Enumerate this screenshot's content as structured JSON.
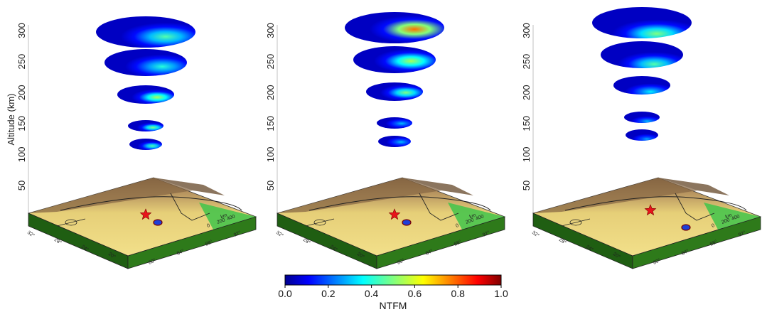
{
  "y_axis": {
    "label": "Altitude (km)",
    "ticks": [
      "50",
      "100",
      "150",
      "200",
      "250",
      "300"
    ]
  },
  "map_labels": {
    "lat_ticks": [
      "32°",
      "28°",
      "24°",
      "20°"
    ],
    "lon_ticks": [
      "80°",
      "84°",
      "88°",
      "92°"
    ],
    "scale_label": "km",
    "scale_ticks": [
      "0",
      "200",
      "400"
    ]
  },
  "colorbar": {
    "label": "NTFM",
    "ticks": [
      "0.0",
      "0.2",
      "0.4",
      "0.6",
      "0.8",
      "1.0"
    ],
    "colormap": "jet",
    "min": 0.0,
    "max": 1.0
  },
  "panels": [
    {
      "name": "left",
      "layers": [
        {
          "altitude_km": 300,
          "peak": 0.45
        },
        {
          "altitude_km": 250,
          "peak": 0.4
        },
        {
          "altitude_km": 200,
          "peak": 0.55
        },
        {
          "altitude_km": 150,
          "peak": 0.5
        },
        {
          "altitude_km": 125,
          "peak": 0.45
        }
      ]
    },
    {
      "name": "middle",
      "layers": [
        {
          "altitude_km": 300,
          "peak": 0.78
        },
        {
          "altitude_km": 250,
          "peak": 0.55
        },
        {
          "altitude_km": 200,
          "peak": 0.5
        },
        {
          "altitude_km": 150,
          "peak": 0.3
        },
        {
          "altitude_km": 125,
          "peak": 0.3
        }
      ]
    },
    {
      "name": "right",
      "layers": [
        {
          "altitude_km": 300,
          "peak": 0.5
        },
        {
          "altitude_km": 250,
          "peak": 0.45
        },
        {
          "altitude_km": 200,
          "peak": 0.35
        },
        {
          "altitude_km": 150,
          "peak": 0.3
        },
        {
          "altitude_km": 125,
          "peak": 0.28
        }
      ]
    }
  ]
}
